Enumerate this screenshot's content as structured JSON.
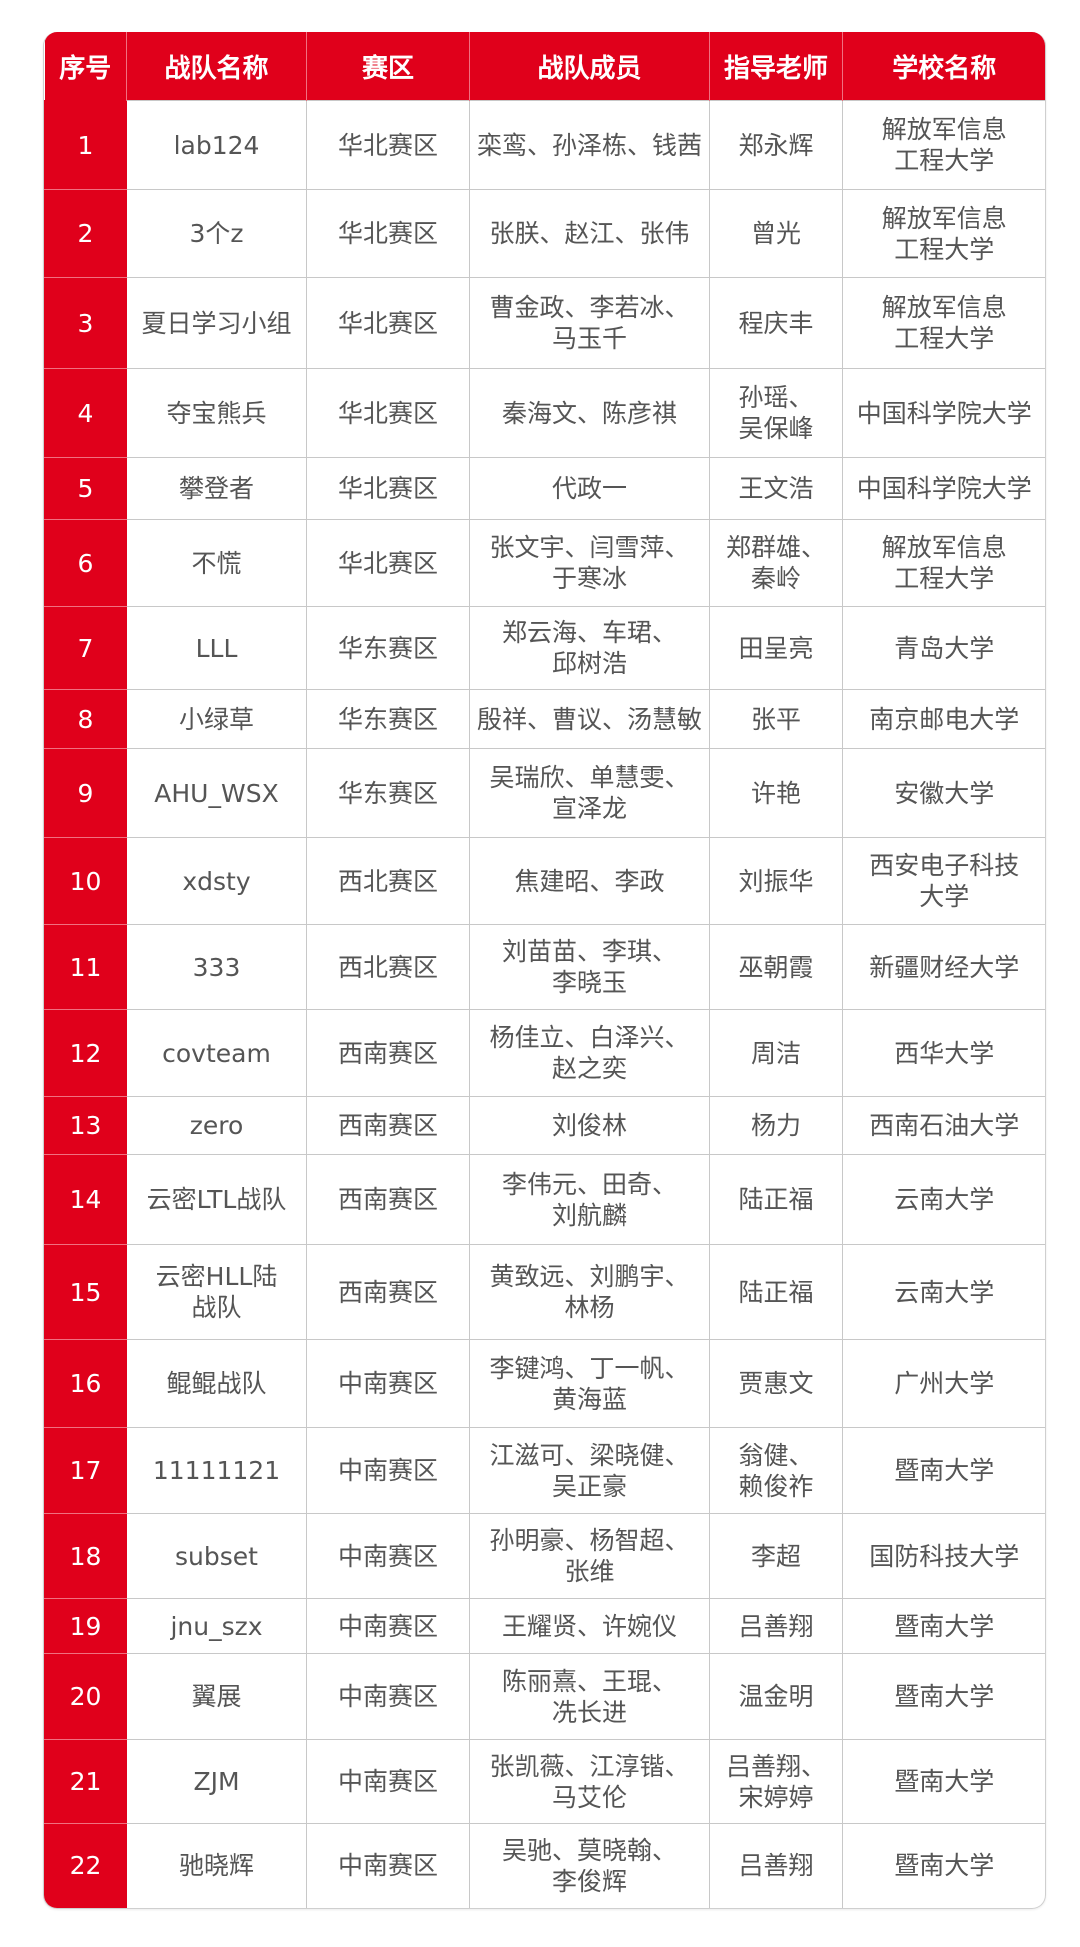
{
  "colors": {
    "header_bg": "#e0001b",
    "index_bg": "#e0001b",
    "text": "#555555"
  },
  "table": {
    "headers": [
      "序号",
      "战队名称",
      "赛区",
      "战队成员",
      "指导老师",
      "学校名称"
    ],
    "rows": [
      [
        "1",
        "lab124",
        "华北赛区",
        "栾鸾、孙泽栋、钱茜",
        "郑永辉",
        "解放军信息\n工程大学"
      ],
      [
        "2",
        "3个z",
        "华北赛区",
        "张朕、赵江、张伟",
        "曾光",
        "解放军信息\n工程大学"
      ],
      [
        "3",
        "夏日学习小组",
        "华北赛区",
        "曹金政、李若冰、\n马玉千",
        "程庆丰",
        "解放军信息\n工程大学"
      ],
      [
        "4",
        "夺宝熊兵",
        "华北赛区",
        "秦海文、陈彦祺",
        "孙瑶、\n吴保峰",
        "中国科学院大学"
      ],
      [
        "5",
        "攀登者",
        "华北赛区",
        "代政一",
        "王文浩",
        "中国科学院大学"
      ],
      [
        "6",
        "不慌",
        "华北赛区",
        "张文宇、闫雪萍、\n于寒冰",
        "郑群雄、\n秦岭",
        "解放军信息\n工程大学"
      ],
      [
        "7",
        "LLL",
        "华东赛区",
        "郑云海、车珺、\n邱树浩",
        "田呈亮",
        "青岛大学"
      ],
      [
        "8",
        "小绿草",
        "华东赛区",
        "殷祥、曹议、汤慧敏",
        "张平",
        "南京邮电大学"
      ],
      [
        "9",
        "AHU_WSX",
        "华东赛区",
        "吴瑞欣、单慧雯、\n宣泽龙",
        "许艳",
        "安徽大学"
      ],
      [
        "10",
        "xdsty",
        "西北赛区",
        "焦建昭、李政",
        "刘振华",
        "西安电子科技\n大学"
      ],
      [
        "11",
        "333",
        "西北赛区",
        "刘苗苗、李琪、\n李晓玉",
        "巫朝霞",
        "新疆财经大学"
      ],
      [
        "12",
        "covteam",
        "西南赛区",
        "杨佳立、白泽兴、\n赵之奕",
        "周洁",
        "西华大学"
      ],
      [
        "13",
        "zero",
        "西南赛区",
        "刘俊林",
        "杨力",
        "西南石油大学"
      ],
      [
        "14",
        "云密LTL战队",
        "西南赛区",
        "李伟元、田奇、\n刘航麟",
        "陆正福",
        "云南大学"
      ],
      [
        "15",
        "云密HLL陆\n战队",
        "西南赛区",
        "黄致远、刘鹏宇、\n林杨",
        "陆正福",
        "云南大学"
      ],
      [
        "16",
        "鲲鲲战队",
        "中南赛区",
        "李键鸿、丁一帆、\n黄海蓝",
        "贾惠文",
        "广州大学"
      ],
      [
        "17",
        "11111121",
        "中南赛区",
        "江滋可、梁晓健、\n吴正豪",
        "翁健、\n赖俊祚",
        "暨南大学"
      ],
      [
        "18",
        "subset",
        "中南赛区",
        "孙明豪、杨智超、\n张维",
        "李超",
        "国防科技大学"
      ],
      [
        "19",
        "jnu_szx",
        "中南赛区",
        "王耀贤、许婉仪",
        "吕善翔",
        "暨南大学"
      ],
      [
        "20",
        "翼展",
        "中南赛区",
        "陈丽熹、王琨、\n冼长进",
        "温金明",
        "暨南大学"
      ],
      [
        "21",
        "ZJM",
        "中南赛区",
        "张凯薇、江淳锴、\n马艾伦",
        "吕善翔、\n宋婷婷",
        "暨南大学"
      ],
      [
        "22",
        "驰晓辉",
        "中南赛区",
        "吴驰、莫晓翰、\n李俊辉",
        "吕善翔",
        "暨南大学"
      ]
    ]
  }
}
